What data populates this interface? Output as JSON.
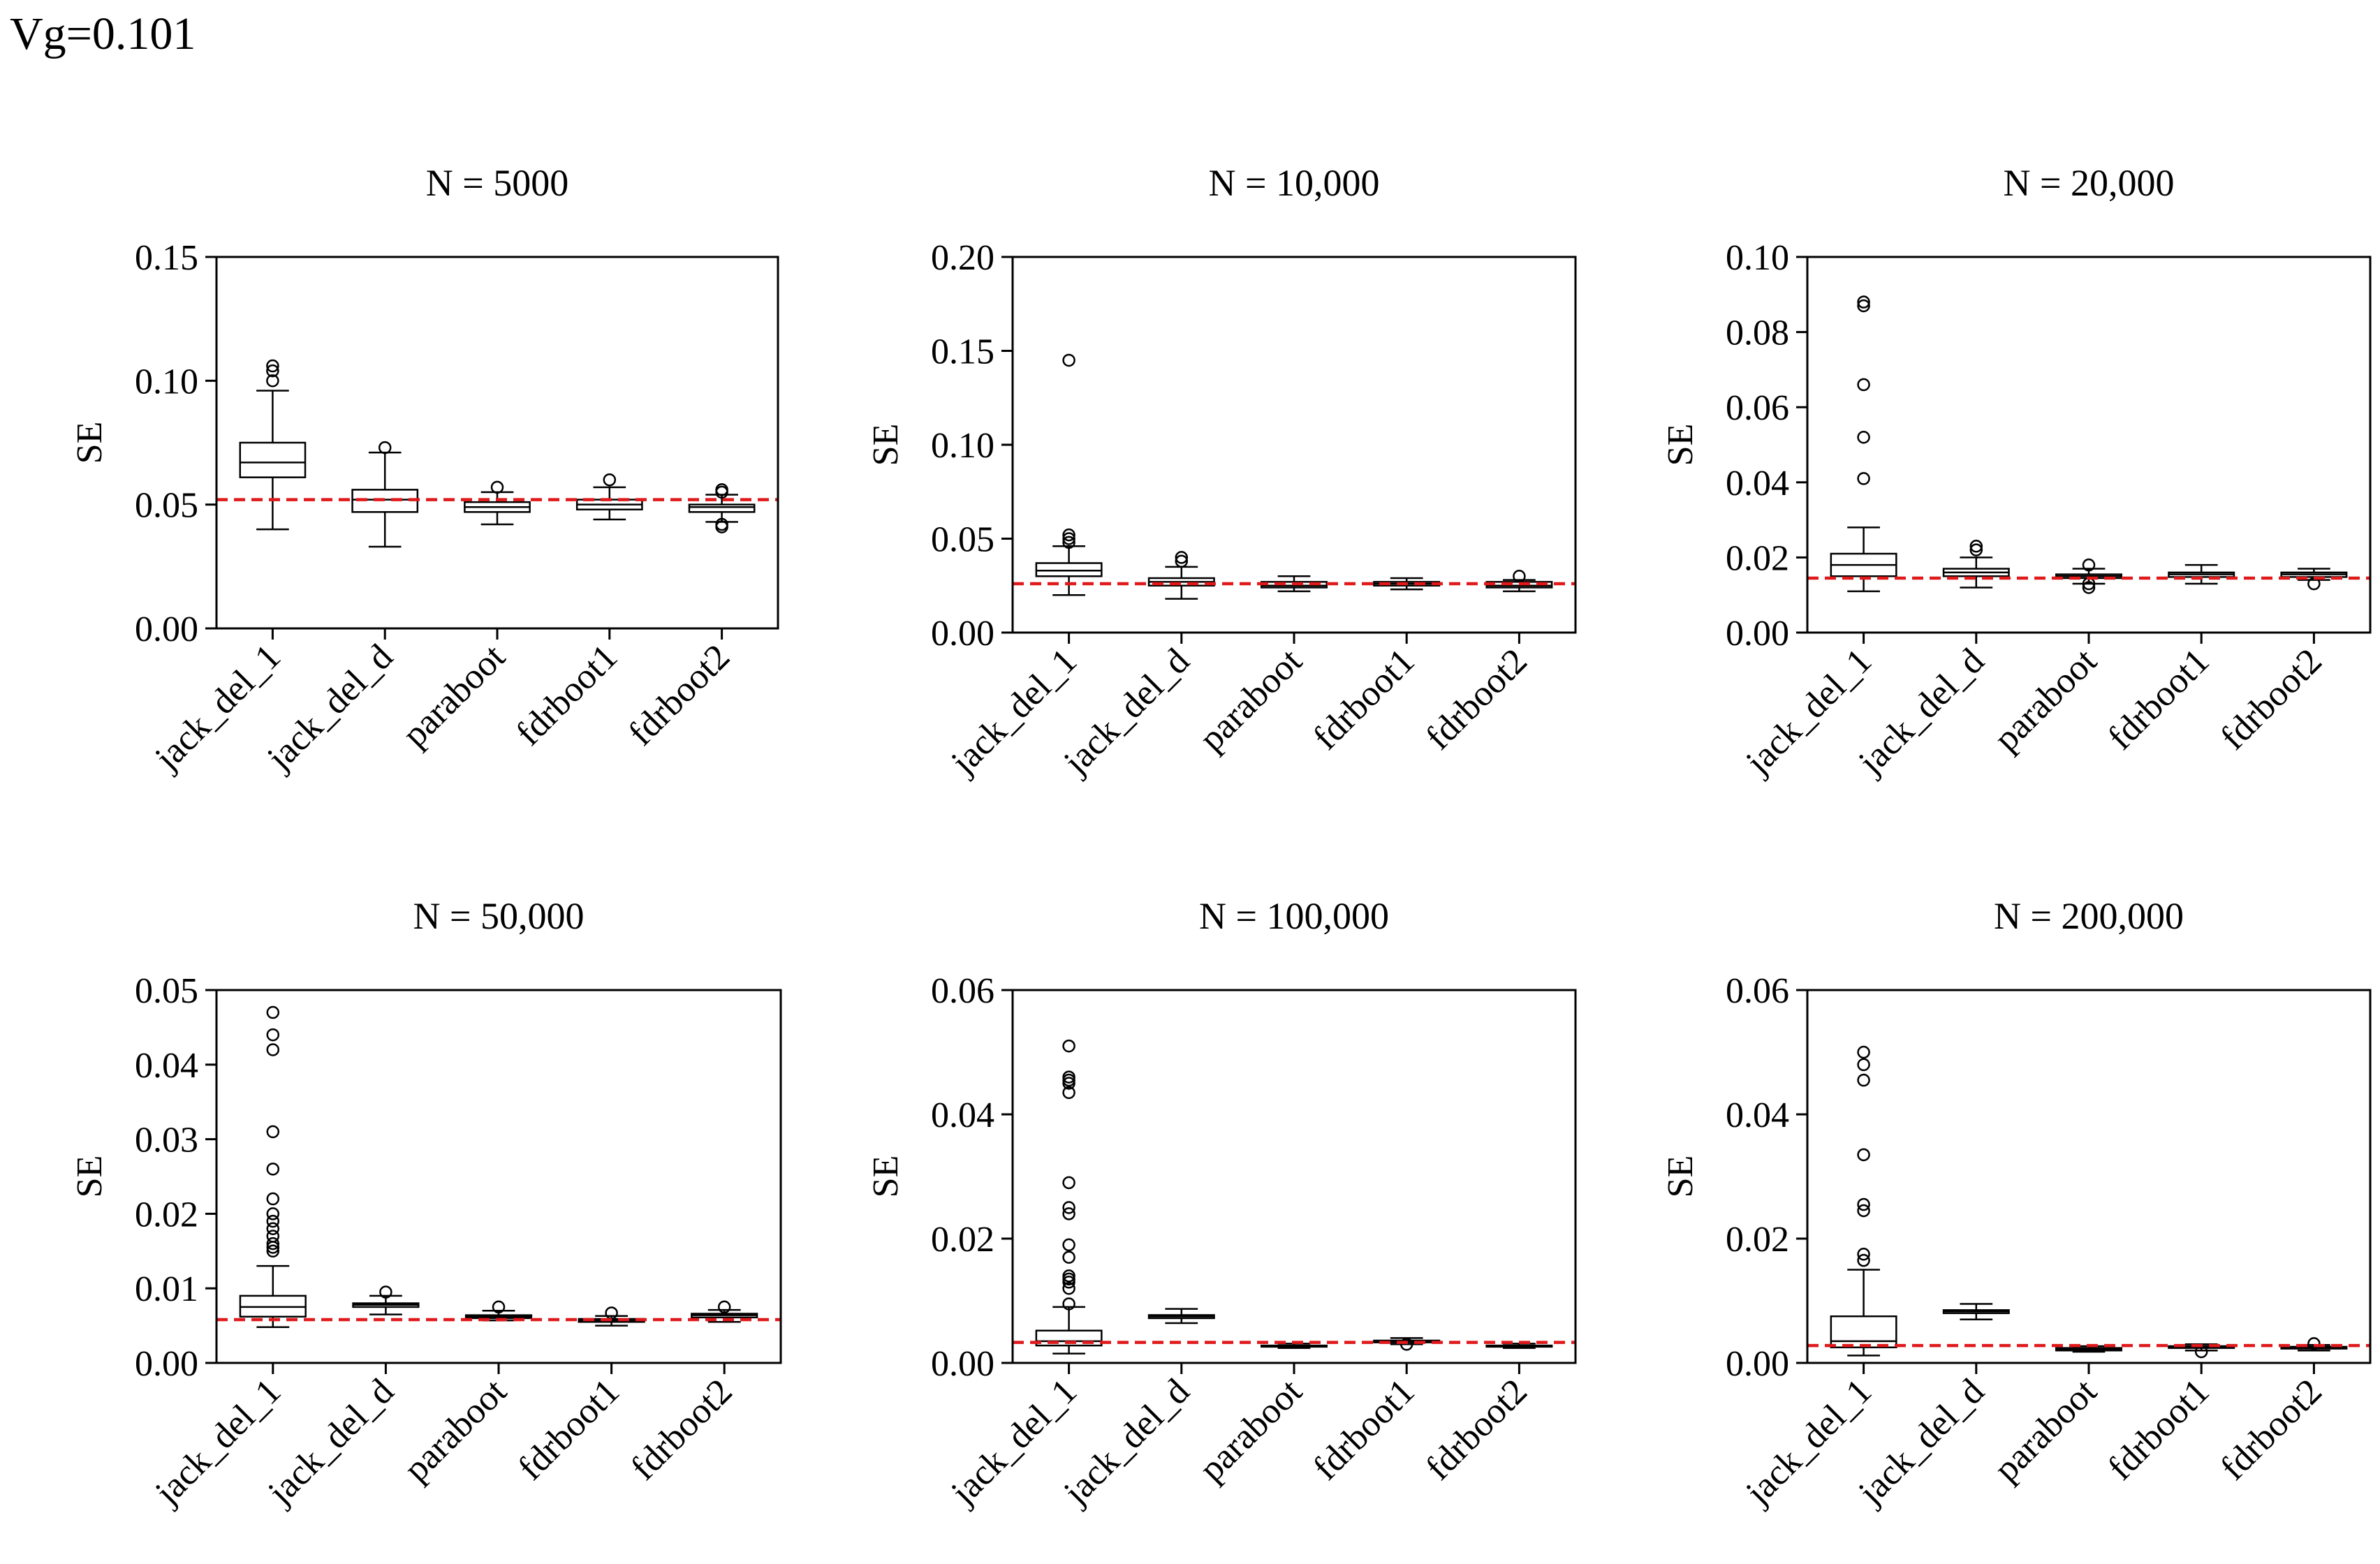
{
  "figure_title": "Vg=0.101",
  "chart_data": [
    {
      "type": "box",
      "title": "N = 5000",
      "ylabel": "SE",
      "ylim": [
        0,
        0.15
      ],
      "yticks": [
        0,
        0.05,
        0.1,
        0.15
      ],
      "ytick_labels": [
        "0.00",
        "0.05",
        "0.10",
        "0.15"
      ],
      "categories": [
        "jack_del_1",
        "jack_del_d",
        "paraboot",
        "fdrboot1",
        "fdrboot2"
      ],
      "reference_line": 0.052,
      "boxes": [
        {
          "whisker_low": 0.04,
          "q1": 0.061,
          "median": 0.067,
          "q3": 0.075,
          "whisker_high": 0.096,
          "outliers": [
            0.1,
            0.104,
            0.106
          ]
        },
        {
          "whisker_low": 0.033,
          "q1": 0.047,
          "median": 0.052,
          "q3": 0.056,
          "whisker_high": 0.071,
          "outliers": [
            0.073
          ]
        },
        {
          "whisker_low": 0.042,
          "q1": 0.047,
          "median": 0.049,
          "q3": 0.051,
          "whisker_high": 0.055,
          "outliers": [
            0.057
          ]
        },
        {
          "whisker_low": 0.044,
          "q1": 0.048,
          "median": 0.05,
          "q3": 0.052,
          "whisker_high": 0.057,
          "outliers": [
            0.06
          ]
        },
        {
          "whisker_low": 0.043,
          "q1": 0.047,
          "median": 0.049,
          "q3": 0.05,
          "whisker_high": 0.054,
          "outliers": [
            0.041,
            0.042,
            0.055,
            0.056
          ]
        }
      ]
    },
    {
      "type": "box",
      "title": "N = 10,000",
      "ylabel": "SE",
      "ylim": [
        0,
        0.2
      ],
      "yticks": [
        0,
        0.05,
        0.1,
        0.15,
        0.2
      ],
      "ytick_labels": [
        "0.00",
        "0.05",
        "0.10",
        "0.15",
        "0.20"
      ],
      "categories": [
        "jack_del_1",
        "jack_del_d",
        "paraboot",
        "fdrboot1",
        "fdrboot2"
      ],
      "reference_line": 0.026,
      "boxes": [
        {
          "whisker_low": 0.02,
          "q1": 0.03,
          "median": 0.033,
          "q3": 0.037,
          "whisker_high": 0.046,
          "outliers": [
            0.048,
            0.05,
            0.052,
            0.145
          ]
        },
        {
          "whisker_low": 0.018,
          "q1": 0.025,
          "median": 0.027,
          "q3": 0.029,
          "whisker_high": 0.035,
          "outliers": [
            0.038,
            0.04
          ]
        },
        {
          "whisker_low": 0.022,
          "q1": 0.024,
          "median": 0.025,
          "q3": 0.027,
          "whisker_high": 0.03,
          "outliers": []
        },
        {
          "whisker_low": 0.023,
          "q1": 0.025,
          "median": 0.026,
          "q3": 0.027,
          "whisker_high": 0.029,
          "outliers": []
        },
        {
          "whisker_low": 0.022,
          "q1": 0.024,
          "median": 0.025,
          "q3": 0.027,
          "whisker_high": 0.028,
          "outliers": [
            0.03
          ]
        }
      ]
    },
    {
      "type": "box",
      "title": "N = 20,000",
      "ylabel": "SE",
      "ylim": [
        0,
        0.1
      ],
      "yticks": [
        0,
        0.02,
        0.04,
        0.06,
        0.08,
        0.1
      ],
      "ytick_labels": [
        "0.00",
        "0.02",
        "0.04",
        "0.06",
        "0.08",
        "0.10"
      ],
      "categories": [
        "jack_del_1",
        "jack_del_d",
        "paraboot",
        "fdrboot1",
        "fdrboot2"
      ],
      "reference_line": 0.0145,
      "boxes": [
        {
          "whisker_low": 0.011,
          "q1": 0.015,
          "median": 0.018,
          "q3": 0.021,
          "whisker_high": 0.028,
          "outliers": [
            0.041,
            0.052,
            0.066,
            0.087,
            0.088
          ]
        },
        {
          "whisker_low": 0.012,
          "q1": 0.015,
          "median": 0.016,
          "q3": 0.017,
          "whisker_high": 0.02,
          "outliers": [
            0.022,
            0.023
          ]
        },
        {
          "whisker_low": 0.013,
          "q1": 0.0145,
          "median": 0.015,
          "q3": 0.0155,
          "whisker_high": 0.017,
          "outliers": [
            0.012,
            0.013,
            0.018
          ]
        },
        {
          "whisker_low": 0.013,
          "q1": 0.0148,
          "median": 0.0155,
          "q3": 0.016,
          "whisker_high": 0.018,
          "outliers": []
        },
        {
          "whisker_low": 0.014,
          "q1": 0.0148,
          "median": 0.0155,
          "q3": 0.016,
          "whisker_high": 0.017,
          "outliers": [
            0.013
          ]
        }
      ]
    },
    {
      "type": "box",
      "title": "N = 50,000",
      "ylabel": "SE",
      "ylim": [
        0,
        0.05
      ],
      "yticks": [
        0,
        0.01,
        0.02,
        0.03,
        0.04,
        0.05
      ],
      "ytick_labels": [
        "0.00",
        "0.01",
        "0.02",
        "0.03",
        "0.04",
        "0.05"
      ],
      "categories": [
        "jack_del_1",
        "jack_del_d",
        "paraboot",
        "fdrboot1",
        "fdrboot2"
      ],
      "reference_line": 0.0058,
      "boxes": [
        {
          "whisker_low": 0.0048,
          "q1": 0.0062,
          "median": 0.0075,
          "q3": 0.009,
          "whisker_high": 0.013,
          "outliers": [
            0.015,
            0.0155,
            0.016,
            0.017,
            0.018,
            0.019,
            0.02,
            0.022,
            0.026,
            0.031,
            0.042,
            0.044,
            0.047
          ]
        },
        {
          "whisker_low": 0.0065,
          "q1": 0.0075,
          "median": 0.0078,
          "q3": 0.008,
          "whisker_high": 0.009,
          "outliers": [
            0.0095
          ]
        },
        {
          "whisker_low": 0.0057,
          "q1": 0.006,
          "median": 0.0062,
          "q3": 0.0064,
          "whisker_high": 0.007,
          "outliers": [
            0.0075
          ]
        },
        {
          "whisker_low": 0.005,
          "q1": 0.0055,
          "median": 0.0057,
          "q3": 0.0059,
          "whisker_high": 0.0063,
          "outliers": [
            0.0067
          ]
        },
        {
          "whisker_low": 0.0055,
          "q1": 0.0061,
          "median": 0.0064,
          "q3": 0.0066,
          "whisker_high": 0.0071,
          "outliers": [
            0.0075
          ]
        }
      ]
    },
    {
      "type": "box",
      "title": "N = 100,000",
      "ylabel": "SE",
      "ylim": [
        0,
        0.06
      ],
      "yticks": [
        0,
        0.02,
        0.04,
        0.06
      ],
      "ytick_labels": [
        "0.00",
        "0.02",
        "0.04",
        "0.06"
      ],
      "categories": [
        "jack_del_1",
        "jack_del_d",
        "paraboot",
        "fdrboot1",
        "fdrboot2"
      ],
      "reference_line": 0.0033,
      "boxes": [
        {
          "whisker_low": 0.0015,
          "q1": 0.0028,
          "median": 0.0035,
          "q3": 0.0052,
          "whisker_high": 0.009,
          "outliers": [
            0.0095,
            0.012,
            0.013,
            0.0135,
            0.014,
            0.017,
            0.019,
            0.024,
            0.025,
            0.029,
            0.0435,
            0.045,
            0.0455,
            0.046,
            0.051
          ]
        },
        {
          "whisker_low": 0.0064,
          "q1": 0.0072,
          "median": 0.0075,
          "q3": 0.0077,
          "whisker_high": 0.0087,
          "outliers": []
        },
        {
          "whisker_low": 0.0024,
          "q1": 0.0026,
          "median": 0.0027,
          "q3": 0.0028,
          "whisker_high": 0.0031,
          "outliers": []
        },
        {
          "whisker_low": 0.003,
          "q1": 0.0033,
          "median": 0.0035,
          "q3": 0.0036,
          "whisker_high": 0.004,
          "outliers": [
            0.003
          ]
        },
        {
          "whisker_low": 0.0024,
          "q1": 0.0026,
          "median": 0.0027,
          "q3": 0.0028,
          "whisker_high": 0.0031,
          "outliers": []
        }
      ]
    },
    {
      "type": "box",
      "title": "N = 200,000",
      "ylabel": "SE",
      "ylim": [
        0,
        0.06
      ],
      "yticks": [
        0,
        0.02,
        0.04,
        0.06
      ],
      "ytick_labels": [
        "0.00",
        "0.02",
        "0.04",
        "0.06"
      ],
      "categories": [
        "jack_del_1",
        "jack_del_d",
        "paraboot",
        "fdrboot1",
        "fdrboot2"
      ],
      "reference_line": 0.0028,
      "boxes": [
        {
          "whisker_low": 0.0012,
          "q1": 0.0025,
          "median": 0.0035,
          "q3": 0.0075,
          "whisker_high": 0.015,
          "outliers": [
            0.0165,
            0.0175,
            0.0245,
            0.0255,
            0.0335,
            0.0455,
            0.048,
            0.05
          ]
        },
        {
          "whisker_low": 0.007,
          "q1": 0.008,
          "median": 0.0083,
          "q3": 0.0085,
          "whisker_high": 0.0095,
          "outliers": []
        },
        {
          "whisker_low": 0.0018,
          "q1": 0.002,
          "median": 0.0022,
          "q3": 0.0024,
          "whisker_high": 0.0027,
          "outliers": []
        },
        {
          "whisker_low": 0.002,
          "q1": 0.0024,
          "median": 0.0026,
          "q3": 0.0027,
          "whisker_high": 0.003,
          "outliers": [
            0.0018
          ]
        },
        {
          "whisker_low": 0.002,
          "q1": 0.0023,
          "median": 0.0025,
          "q3": 0.0026,
          "whisker_high": 0.0029,
          "outliers": [
            0.0031
          ]
        }
      ]
    }
  ],
  "colors": {
    "reference_line": "#e0191b",
    "axis": "#000000",
    "box_fill": "#ffffff"
  }
}
